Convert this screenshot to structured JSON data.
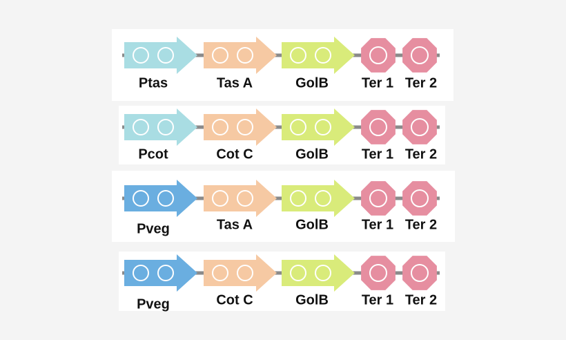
{
  "constructs": [
    {
      "parts": [
        {
          "label": "Ptas"
        },
        {
          "label": "Tas A"
        },
        {
          "label": "GolB"
        },
        {
          "label": "Ter 1"
        },
        {
          "label": "Ter 2"
        }
      ]
    },
    {
      "parts": [
        {
          "label": "Pcot"
        },
        {
          "label": "Cot C"
        },
        {
          "label": "GolB"
        },
        {
          "label": "Ter 1"
        },
        {
          "label": "Ter 2"
        }
      ]
    },
    {
      "parts": [
        {
          "label": "Pveg"
        },
        {
          "label": "Tas A"
        },
        {
          "label": "GolB"
        },
        {
          "label": "Ter 1"
        },
        {
          "label": "Ter 2"
        }
      ]
    },
    {
      "parts": [
        {
          "label": "Pveg"
        },
        {
          "label": "Cot C"
        },
        {
          "label": "GolB"
        },
        {
          "label": "Ter 1"
        },
        {
          "label": "Ter 2"
        }
      ]
    }
  ]
}
